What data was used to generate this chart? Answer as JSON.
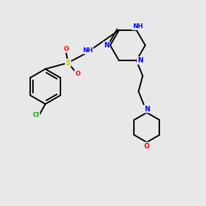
{
  "bg_color": "#e8e8e8",
  "bond_color": "#000000",
  "bond_lw": 1.5,
  "atom_colors": {
    "C": "#000000",
    "N": "#0000ff",
    "O": "#ff0000",
    "S": "#cccc00",
    "Cl": "#00aa00",
    "H": "#4a8a8a"
  }
}
